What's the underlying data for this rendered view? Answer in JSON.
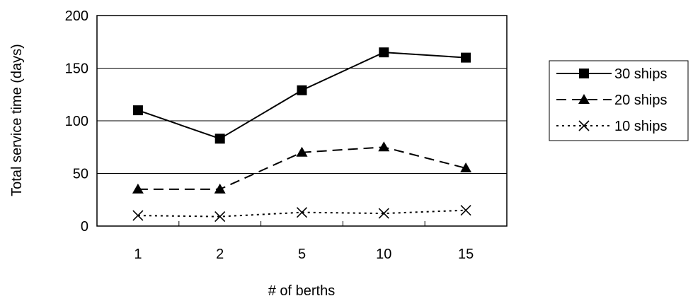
{
  "chart_data": {
    "type": "line",
    "title": "",
    "xlabel": "# of berths",
    "ylabel": "Total service time (days)",
    "categories": [
      "1",
      "2",
      "5",
      "10",
      "15"
    ],
    "ylim": [
      0,
      200
    ],
    "yticks": [
      "0",
      "50",
      "100",
      "150",
      "200"
    ],
    "grid": "horizontal",
    "legend_position": "right",
    "series": [
      {
        "name": "30 ships",
        "values": [
          110,
          83,
          129,
          165,
          160
        ],
        "marker": "square",
        "line": "solid",
        "color": "#000000"
      },
      {
        "name": "20 ships",
        "values": [
          35,
          35,
          70,
          75,
          55
        ],
        "marker": "triangle",
        "line": "dashed",
        "color": "#000000"
      },
      {
        "name": "10 ships",
        "values": [
          10,
          9,
          13,
          12,
          15
        ],
        "marker": "x",
        "line": "dotted",
        "color": "#000000"
      }
    ]
  }
}
